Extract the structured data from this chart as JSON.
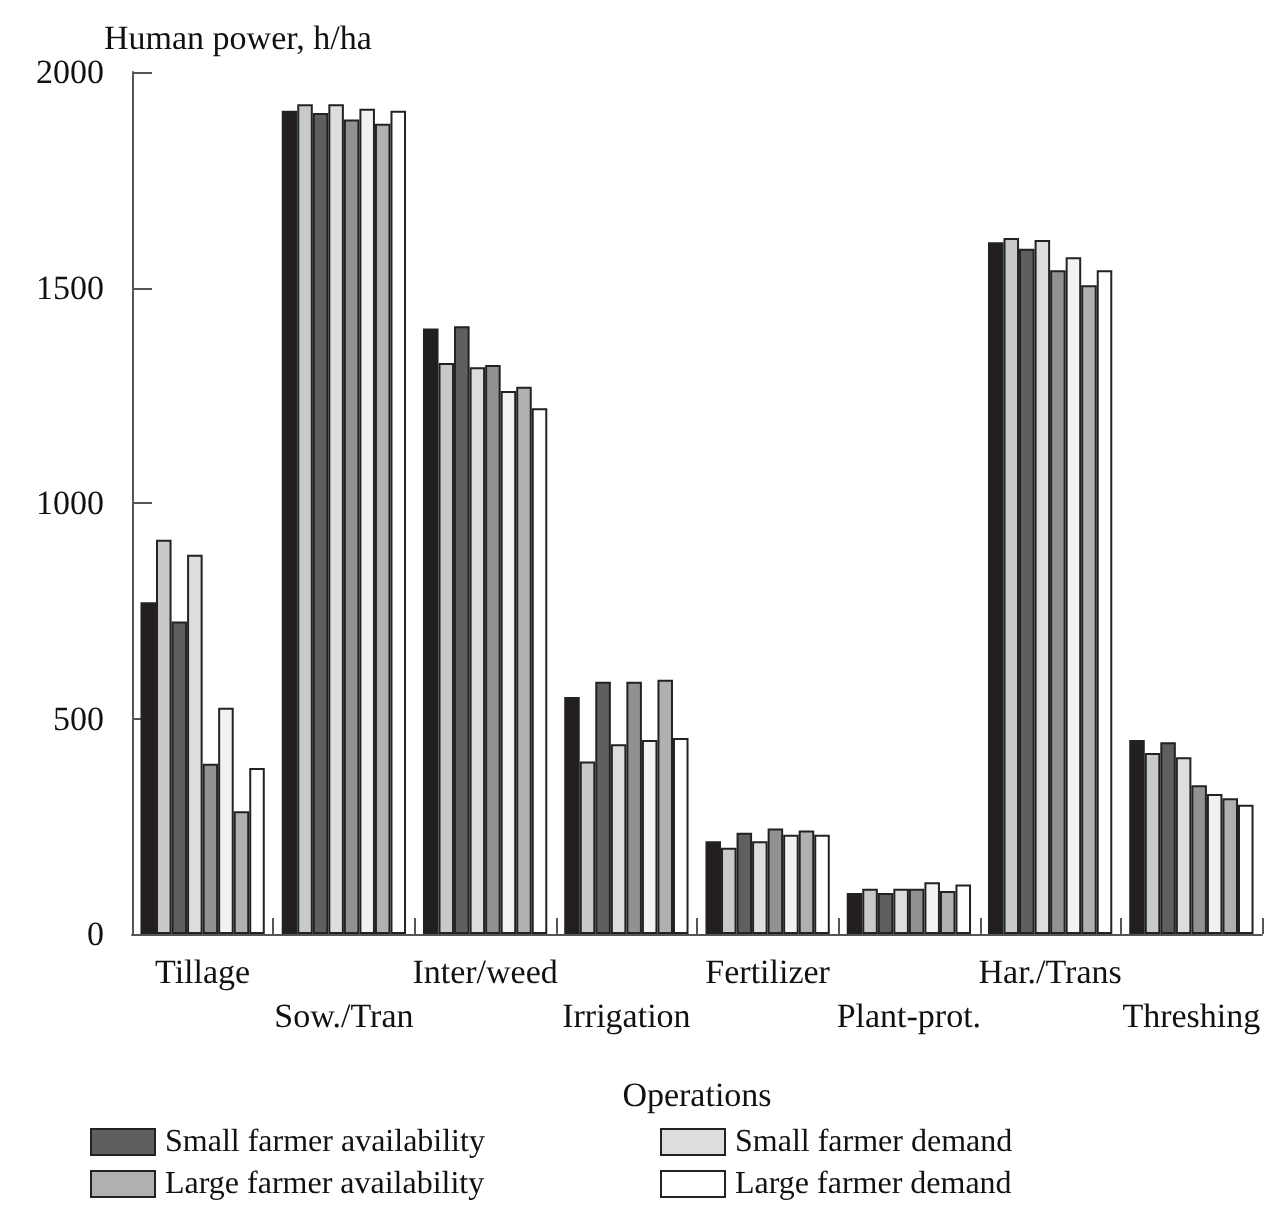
{
  "chart_data": {
    "type": "bar",
    "xlabel": "Operations",
    "ylabel": "Human power, h/ha",
    "categories": [
      "Tillage",
      "Sow./Tran",
      "Inter/weed",
      "Irrigation",
      "Fertilizer",
      "Plant-prot.",
      "Har./Trans",
      "Threshing"
    ],
    "series": [
      {
        "color": "#231f20",
        "values": [
          770,
          1910,
          1405,
          550,
          215,
          95,
          1605,
          450
        ]
      },
      {
        "color": "#c8c9ca",
        "values": [
          915,
          1925,
          1325,
          400,
          200,
          105,
          1615,
          420
        ]
      },
      {
        "name": "Small farmer availability",
        "color": "#5e5f61",
        "values": [
          725,
          1905,
          1410,
          585,
          235,
          95,
          1590,
          445
        ]
      },
      {
        "name": "Small farmer demand",
        "color": "#dcddde",
        "values": [
          880,
          1925,
          1315,
          440,
          215,
          105,
          1610,
          410
        ]
      },
      {
        "color": "#909193",
        "values": [
          395,
          1890,
          1320,
          585,
          245,
          105,
          1540,
          345
        ]
      },
      {
        "color": "#f1f2f2",
        "values": [
          525,
          1915,
          1260,
          450,
          230,
          120,
          1570,
          325
        ]
      },
      {
        "name": "Large farmer availability",
        "color": "#afb0b2",
        "values": [
          285,
          1880,
          1270,
          590,
          240,
          100,
          1505,
          315
        ]
      },
      {
        "name": "Large farmer demand",
        "color": "#ffffff",
        "values": [
          385,
          1910,
          1220,
          455,
          230,
          115,
          1540,
          300
        ]
      }
    ],
    "ylim": [
      0,
      2000
    ],
    "yticks": [
      0,
      500,
      1000,
      1500,
      2000
    ],
    "grid": false,
    "legend": "bottom"
  }
}
